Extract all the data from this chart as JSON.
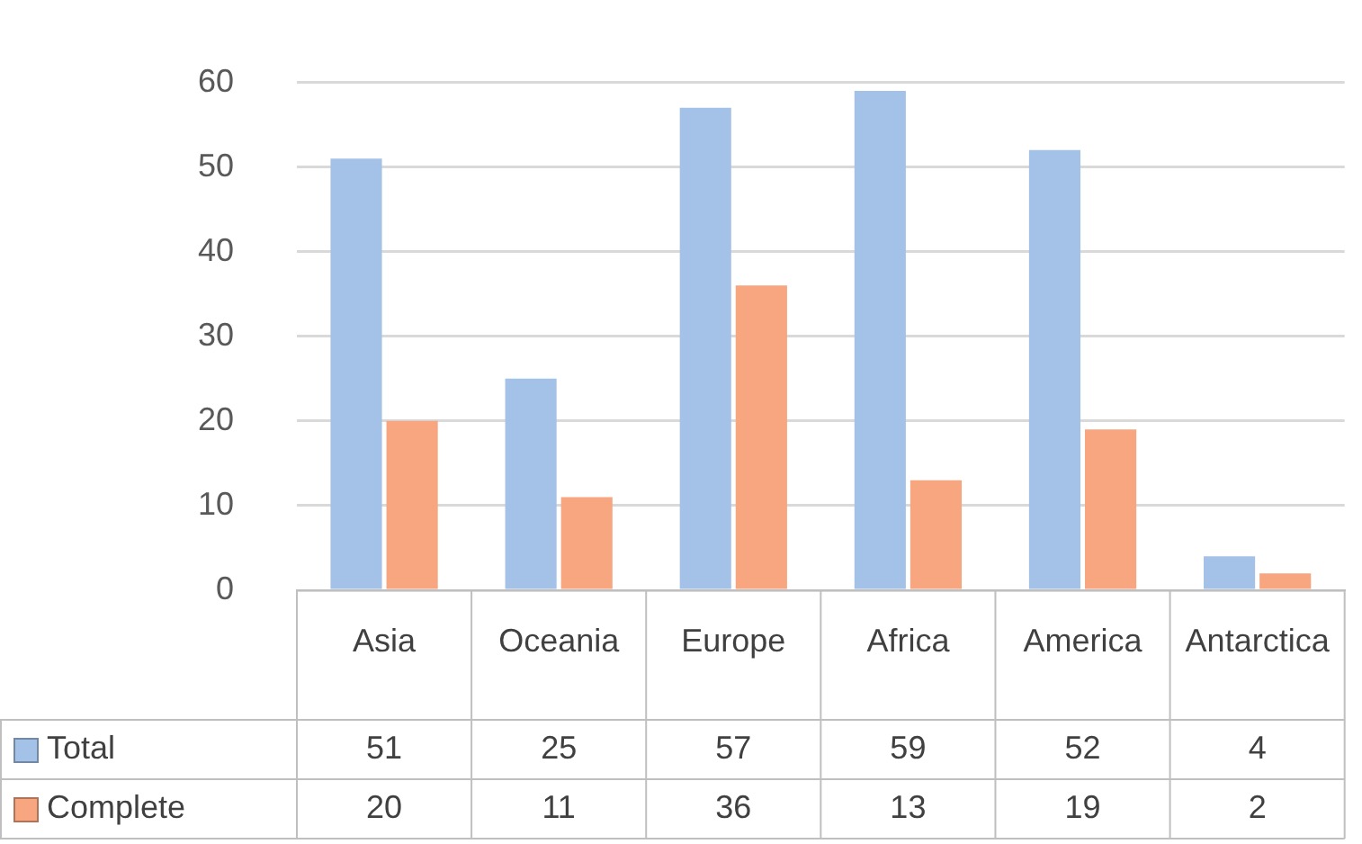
{
  "chart_data": {
    "type": "bar",
    "categories": [
      "Asia",
      "Oceania",
      "Europe",
      "Africa",
      "America",
      "Antarctica"
    ],
    "series": [
      {
        "name": "Total",
        "color": "#a4c2e8",
        "values": [
          51,
          25,
          57,
          59,
          52,
          4
        ]
      },
      {
        "name": "Complete",
        "color": "#f7a680",
        "values": [
          20,
          11,
          36,
          13,
          19,
          2
        ]
      }
    ],
    "ylim": [
      0,
      60
    ],
    "yticks": [
      0,
      10,
      20,
      30,
      40,
      50,
      60
    ],
    "grid": "y",
    "legend": "bottom",
    "data_labels": true
  }
}
